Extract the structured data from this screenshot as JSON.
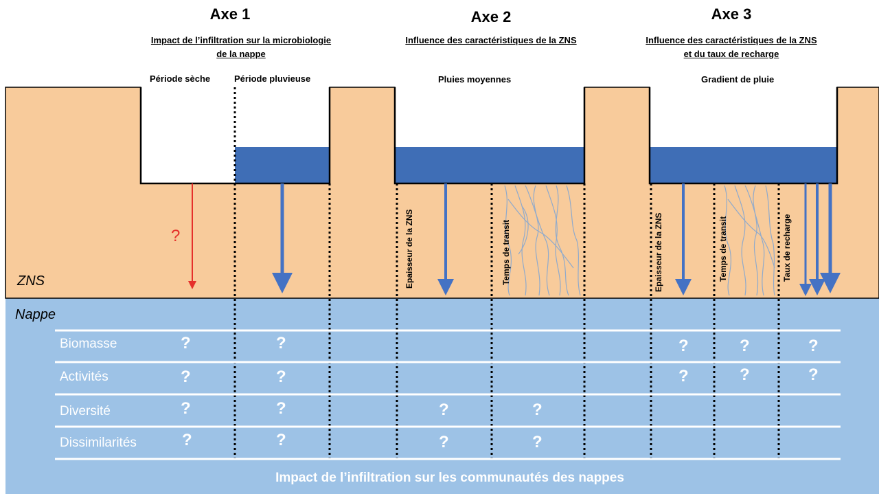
{
  "axes": [
    {
      "title": "Axe 1",
      "subtitle": "Impact de l’infiltration sur la microbiologie de la nappe"
    },
    {
      "title": "Axe 2",
      "subtitle": "Influence des caractéristiques de la ZNS"
    },
    {
      "title": "Axe 3",
      "subtitle": "Influence des caractéristiques de la ZNS et du taux de recharge"
    }
  ],
  "conditions": {
    "dry": "Période sèche",
    "rainy": "Période pluvieuse",
    "average_rain": "Pluies moyennes",
    "rain_gradient": "Gradient de pluie"
  },
  "zones": {
    "zns": "ZNS",
    "nappe": "Nappe"
  },
  "factors": {
    "axe2_thickness": "Epaisseur de la ZNS",
    "axe2_transit": "Temps de transit",
    "axe3_thickness": "Epaisseur de la ZNS",
    "axe3_transit": "Temps de transit",
    "axe3_recharge": "Taux de recharge"
  },
  "rows": [
    "Biomasse",
    "Activités",
    "Diversité",
    "Dissimilarités"
  ],
  "unknown_mark": "?",
  "footer": "Impact de l’infiltration sur les communautés des nappes",
  "colors": {
    "soil": "#f8cb9b",
    "groundwater": "#9dc2e6",
    "water": "#3f6eb6",
    "arrow": "#4472c4",
    "question_red": "#e5302a",
    "roots": "#8faacc"
  }
}
